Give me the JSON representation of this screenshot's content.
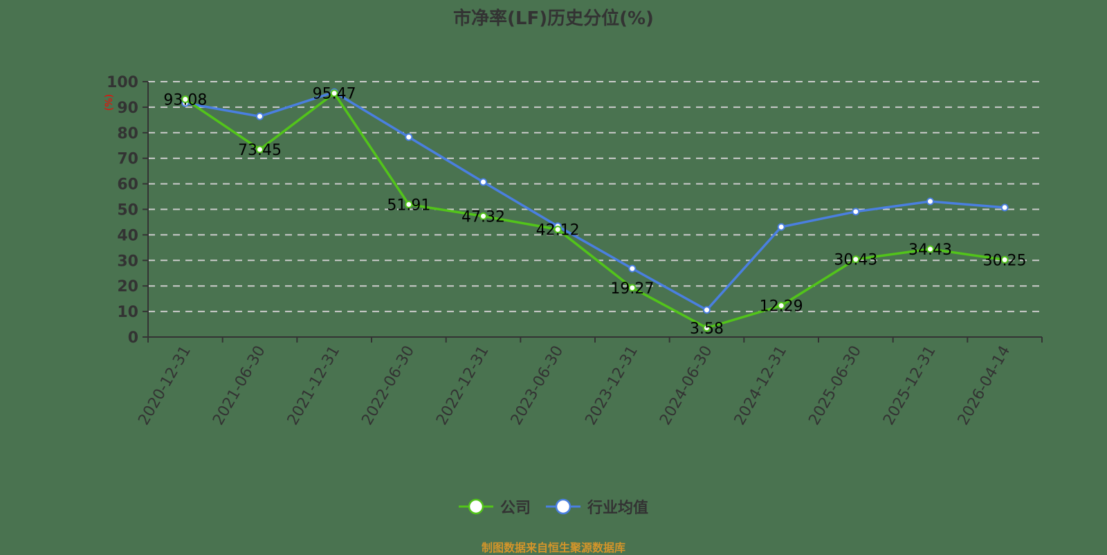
{
  "chart_data": {
    "type": "line",
    "title": "市净率(LF)历史分位(%)",
    "xlabel": "",
    "ylabel": "(%)",
    "ylim": [
      0,
      100
    ],
    "yticks": [
      0,
      10,
      20,
      30,
      40,
      50,
      60,
      70,
      80,
      90,
      100
    ],
    "grid": true,
    "legend_position": "bottom",
    "categories": [
      "2020-12-31",
      "2021-06-30",
      "2021-12-31",
      "2022-06-30",
      "2022-12-31",
      "2023-06-30",
      "2023-12-31",
      "2024-06-30",
      "2024-12-31",
      "2025-06-30",
      "2025-12-31",
      "2026-04-14"
    ],
    "series": [
      {
        "name": "公司",
        "color": "#52c41a",
        "values": [
          93.08,
          73.45,
          95.47,
          51.91,
          47.32,
          42.12,
          19.27,
          3.58,
          12.29,
          30.43,
          34.43,
          30.25
        ],
        "labels": [
          "93.08",
          "73.45",
          "95.47",
          "51.91",
          "47.32",
          "42.12",
          "19.27",
          "3.58",
          "12.29",
          "30.43",
          "34.43",
          "30.25"
        ]
      },
      {
        "name": "行业均值",
        "color": "#4a7fe0",
        "values": [
          91.6,
          86.4,
          95.9,
          78.3,
          60.7,
          43.4,
          26.8,
          10.6,
          43.1,
          49.1,
          53.1,
          50.7
        ]
      }
    ]
  },
  "title": "市净率(LF)历史分位(%)",
  "y_unit": "(%)",
  "legend": [
    {
      "label": "公司",
      "color": "#52c41a"
    },
    {
      "label": "行业均值",
      "color": "#4a7fe0"
    }
  ],
  "footer": "制图数据来自恒生聚源数据库"
}
